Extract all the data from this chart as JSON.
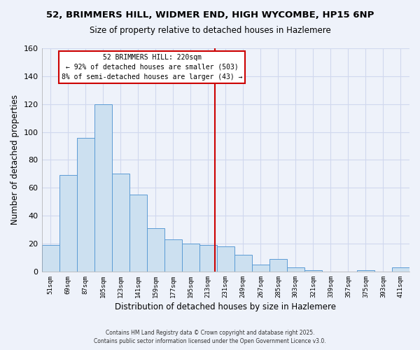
{
  "title": "52, BRIMMERS HILL, WIDMER END, HIGH WYCOMBE, HP15 6NP",
  "subtitle": "Size of property relative to detached houses in Hazlemere",
  "xlabel": "Distribution of detached houses by size in Hazlemere",
  "ylabel": "Number of detached properties",
  "bar_color": "#cce0f0",
  "bar_edge_color": "#5b9bd5",
  "categories": [
    "51sqm",
    "69sqm",
    "87sqm",
    "105sqm",
    "123sqm",
    "141sqm",
    "159sqm",
    "177sqm",
    "195sqm",
    "213sqm",
    "231sqm",
    "249sqm",
    "267sqm",
    "285sqm",
    "303sqm",
    "321sqm",
    "339sqm",
    "357sqm",
    "375sqm",
    "393sqm",
    "411sqm"
  ],
  "values": [
    19,
    69,
    96,
    120,
    70,
    55,
    31,
    23,
    20,
    19,
    18,
    12,
    5,
    9,
    3,
    1,
    0,
    0,
    1,
    0,
    3
  ],
  "ylim": [
    0,
    160
  ],
  "yticks": [
    0,
    20,
    40,
    60,
    80,
    100,
    120,
    140,
    160
  ],
  "vline_color": "#cc0000",
  "vline_pos": 9.39,
  "annotation_title": "52 BRIMMERS HILL: 220sqm",
  "annotation_line1": "← 92% of detached houses are smaller (503)",
  "annotation_line2": "8% of semi-detached houses are larger (43) →",
  "annotation_box_color": "#ffffff",
  "annotation_box_edge": "#cc0000",
  "background_color": "#eef2fa",
  "grid_color": "#d0d8ee",
  "footnote1": "Contains HM Land Registry data © Crown copyright and database right 2025.",
  "footnote2": "Contains public sector information licensed under the Open Government Licence v3.0."
}
